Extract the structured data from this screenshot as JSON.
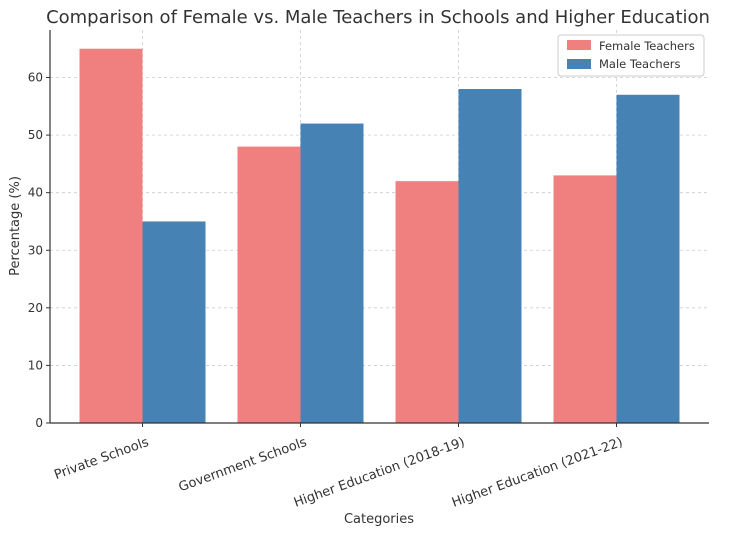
{
  "chart_data": {
    "type": "bar",
    "title": "Comparison of Female vs. Male Teachers in Schools and Higher Education",
    "xlabel": "Categories",
    "ylabel": "Percentage (%)",
    "categories": [
      "Private Schools",
      "Government Schools",
      "Higher Education (2018-19)",
      "Higher Education (2021-22)"
    ],
    "series": [
      {
        "name": "Female Teachers",
        "color": "#f08080",
        "values": [
          65,
          48,
          42,
          43
        ]
      },
      {
        "name": "Male Teachers",
        "color": "#4682b4",
        "values": [
          35,
          52,
          58,
          57
        ]
      }
    ],
    "ylim": [
      0,
      68.25
    ],
    "yticks": [
      0,
      10,
      20,
      30,
      40,
      50,
      60
    ],
    "grid": true,
    "legend_position": "top-right",
    "colors": {
      "text": "#333333",
      "grid": "#cccccc",
      "axis": "#333333"
    }
  }
}
